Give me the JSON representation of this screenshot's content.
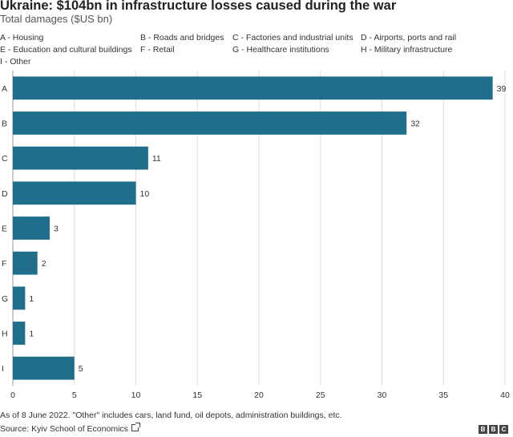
{
  "chart_data": {
    "type": "bar",
    "orientation": "horizontal",
    "title": "Ukraine: $104bn in infrastructure losses caused during the war",
    "subtitle": "Total damages ($US bn)",
    "categories": [
      "A",
      "B",
      "C",
      "D",
      "E",
      "F",
      "G",
      "H",
      "I"
    ],
    "values": [
      39,
      32,
      11,
      10,
      3,
      2,
      1,
      1,
      5
    ],
    "xlim": [
      0,
      40
    ],
    "xticks": [
      0,
      5,
      10,
      15,
      20,
      25,
      30,
      35,
      40
    ],
    "bar_color": "#1f6e8c",
    "grid": true,
    "legend": [
      "A - Housing",
      "B - Roads and bridges",
      "C - Factories and industrial units",
      "D - Airports, ports and rail",
      "E - Education and cultural buildings",
      "F - Retail",
      "G - Healthcare institutions",
      "H - Military infrastructure",
      "I - Other"
    ]
  },
  "footer": {
    "note": "As of 8 June 2022. \"Other\" includes cars, land fund, oil depots, administration buildings, etc.",
    "source": "Source: Kyiv School of Economics",
    "brand": [
      "B",
      "B",
      "C"
    ]
  }
}
